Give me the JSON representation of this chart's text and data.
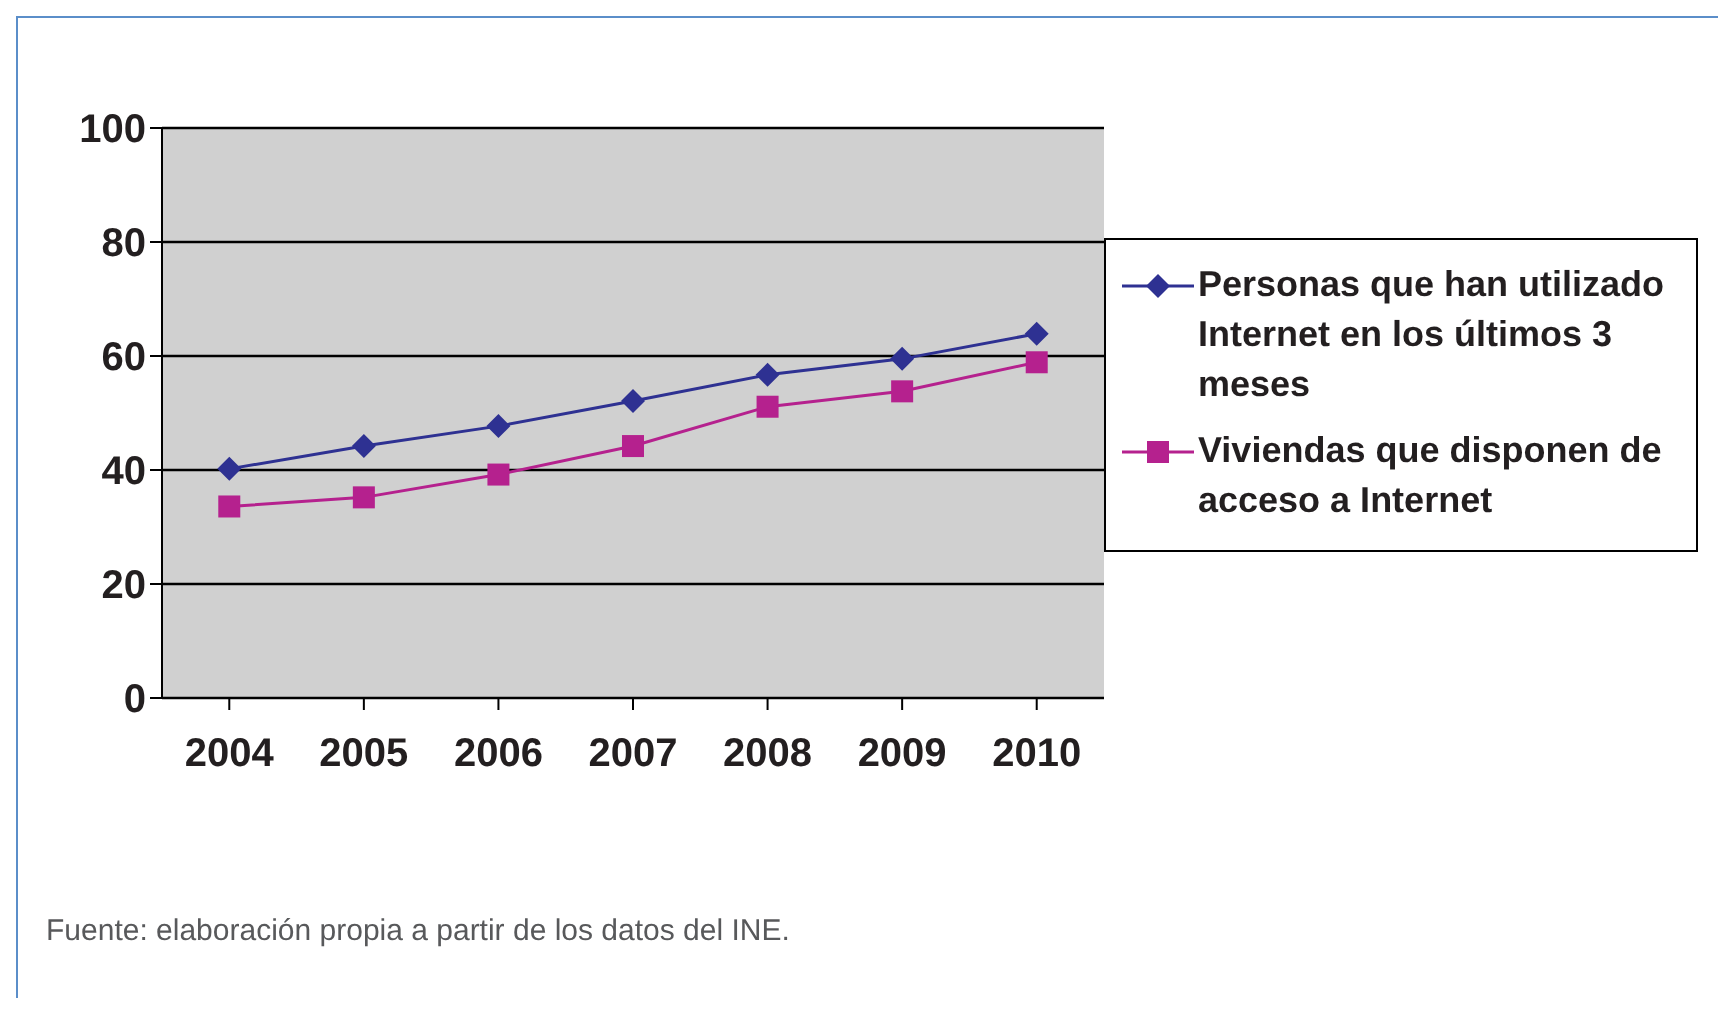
{
  "chart_data": {
    "type": "line",
    "categories": [
      "2004",
      "2005",
      "2006",
      "2007",
      "2008",
      "2009",
      "2010"
    ],
    "series": [
      {
        "name": "Personas que han utilizado Internet en los últimos 3 meses",
        "color": "#2e3192",
        "marker": "diamond",
        "values": [
          40.2,
          44.2,
          47.7,
          52.1,
          56.7,
          59.5,
          63.9
        ]
      },
      {
        "name": "Viviendas que disponen de acceso a Internet",
        "color": "#b5218e",
        "marker": "square",
        "values": [
          33.6,
          35.2,
          39.2,
          44.2,
          51.1,
          53.8,
          58.9
        ]
      }
    ],
    "ylim": [
      0,
      100
    ],
    "yticks": [
      0,
      20,
      40,
      60,
      80,
      100
    ],
    "grid": "y",
    "legend": "right",
    "annotations": [
      "Fuente: elaboración propia a partir de los datos del INE."
    ]
  }
}
